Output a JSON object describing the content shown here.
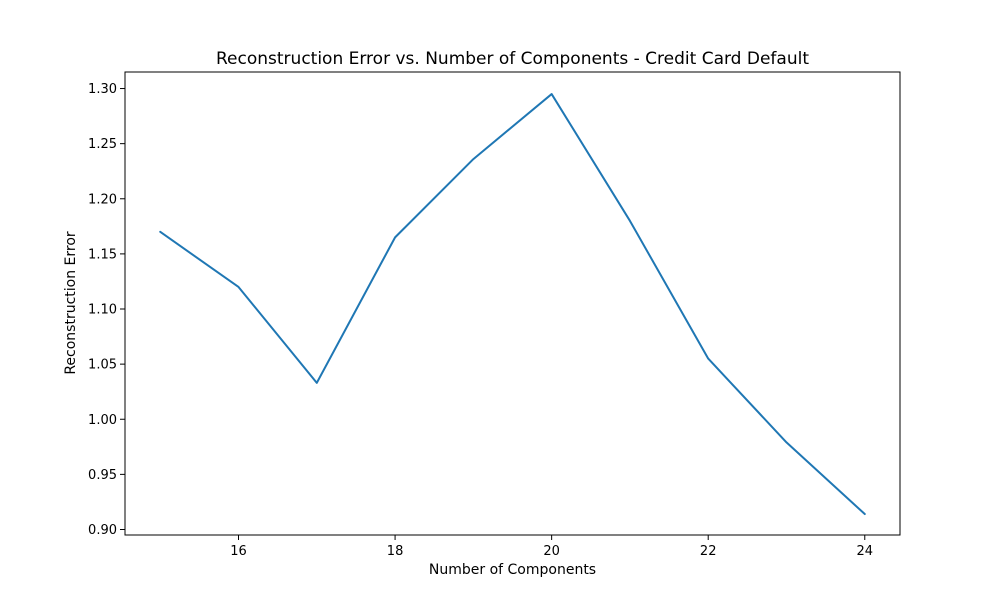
{
  "chart_data": {
    "type": "line",
    "title": "Reconstruction Error vs. Number of Components - Credit Card Default",
    "xlabel": "Number of Components",
    "ylabel": "Reconstruction Error",
    "xlim": [
      14.55,
      24.45
    ],
    "ylim": [
      0.895,
      1.315
    ],
    "x_ticks": [
      16,
      18,
      20,
      22,
      24
    ],
    "y_ticks": [
      0.9,
      0.95,
      1.0,
      1.05,
      1.1,
      1.15,
      1.2,
      1.25,
      1.3
    ],
    "y_tick_labels": [
      "0.90",
      "0.95",
      "1.00",
      "1.05",
      "1.10",
      "1.15",
      "1.20",
      "1.25",
      "1.30"
    ],
    "grid": false,
    "series": [
      {
        "color": "#1f77b4",
        "x": [
          15,
          16,
          17,
          18,
          19,
          20,
          21,
          22,
          23,
          24
        ],
        "y": [
          1.17,
          1.12,
          1.033,
          1.165,
          1.236,
          1.295,
          1.18,
          1.055,
          0.979,
          0.914
        ]
      }
    ]
  }
}
